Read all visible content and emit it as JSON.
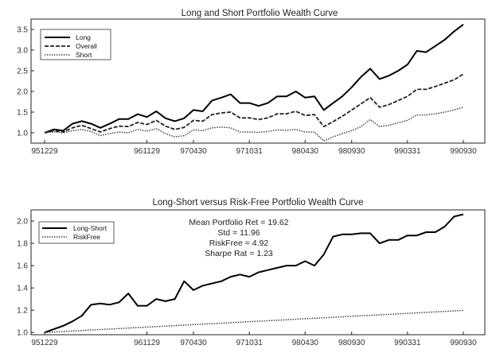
{
  "chart_data": [
    {
      "type": "line",
      "title": "Long and Short Portfolio Wealth Curve",
      "xlabel": "",
      "ylabel": "",
      "x_tick_labels": [
        "951229",
        "961129",
        "970430",
        "971031",
        "980430",
        "980930",
        "990331",
        "990930"
      ],
      "x_tick_index": [
        0,
        11,
        16,
        22,
        28,
        33,
        39,
        45
      ],
      "ylim": [
        0.75,
        3.75
      ],
      "yticks": [
        1.0,
        1.5,
        2.0,
        2.5,
        3.0,
        3.5
      ],
      "ytick_labels": [
        "1.0",
        "1.5",
        "2.0",
        "2.5",
        "3.0",
        "3.5"
      ],
      "legend_position": "top-left",
      "series": [
        {
          "name": "Long",
          "style": "solid",
          "values": [
            1.0,
            1.08,
            1.05,
            1.22,
            1.28,
            1.22,
            1.12,
            1.22,
            1.33,
            1.33,
            1.45,
            1.38,
            1.52,
            1.35,
            1.28,
            1.35,
            1.55,
            1.52,
            1.78,
            1.85,
            1.93,
            1.72,
            1.72,
            1.65,
            1.72,
            1.88,
            1.88,
            2.0,
            1.85,
            1.88,
            1.55,
            1.72,
            1.88,
            2.1,
            2.35,
            2.55,
            2.3,
            2.38,
            2.5,
            2.65,
            2.98,
            2.95,
            3.1,
            3.25,
            3.45,
            3.62
          ]
        },
        {
          "name": "Overall",
          "style": "dashed",
          "values": [
            1.0,
            1.05,
            1.02,
            1.12,
            1.18,
            1.1,
            1.02,
            1.1,
            1.16,
            1.15,
            1.25,
            1.2,
            1.3,
            1.16,
            1.08,
            1.13,
            1.3,
            1.28,
            1.44,
            1.48,
            1.5,
            1.36,
            1.36,
            1.32,
            1.36,
            1.46,
            1.46,
            1.52,
            1.42,
            1.44,
            1.15,
            1.27,
            1.4,
            1.55,
            1.7,
            1.85,
            1.62,
            1.68,
            1.78,
            1.88,
            2.05,
            2.05,
            2.12,
            2.2,
            2.28,
            2.42
          ]
        },
        {
          "name": "Short",
          "style": "dotted",
          "values": [
            1.0,
            1.02,
            1.0,
            1.05,
            1.08,
            1.03,
            0.93,
            0.98,
            1.02,
            1.0,
            1.08,
            1.04,
            1.1,
            0.98,
            0.9,
            0.93,
            1.07,
            1.05,
            1.12,
            1.14,
            1.12,
            1.02,
            1.02,
            1.01,
            1.03,
            1.07,
            1.06,
            1.08,
            1.02,
            1.02,
            0.8,
            0.9,
            0.98,
            1.05,
            1.15,
            1.32,
            1.15,
            1.18,
            1.24,
            1.3,
            1.43,
            1.43,
            1.46,
            1.5,
            1.55,
            1.62
          ]
        }
      ]
    },
    {
      "type": "line",
      "title": "Long-Short versus Risk-Free Portfolio Wealth Curve",
      "xlabel": "",
      "ylabel": "",
      "x_tick_labels": [
        "951229",
        "961129",
        "970430",
        "971031",
        "980430",
        "980930",
        "990331",
        "990930"
      ],
      "x_tick_index": [
        0,
        11,
        16,
        22,
        28,
        33,
        39,
        45
      ],
      "ylim": [
        0.98,
        2.1
      ],
      "yticks": [
        1.0,
        1.2,
        1.4,
        1.6,
        1.8,
        2.0
      ],
      "ytick_labels": [
        "1.0",
        "1.2",
        "1.4",
        "1.6",
        "1.8",
        "2.0"
      ],
      "legend_position": "top-left",
      "annotations": [
        "Mean Portfolio Ret = 19.62",
        "Std = 11.96",
        "RiskFree = 4.92",
        "Sharpe Rat = 1.23"
      ],
      "series": [
        {
          "name": "Long-Short",
          "style": "solid",
          "values": [
            1.0,
            1.03,
            1.06,
            1.1,
            1.15,
            1.25,
            1.26,
            1.25,
            1.27,
            1.35,
            1.24,
            1.24,
            1.3,
            1.28,
            1.3,
            1.46,
            1.38,
            1.42,
            1.44,
            1.46,
            1.5,
            1.52,
            1.5,
            1.54,
            1.56,
            1.58,
            1.6,
            1.6,
            1.64,
            1.6,
            1.7,
            1.86,
            1.88,
            1.88,
            1.89,
            1.89,
            1.8,
            1.83,
            1.83,
            1.87,
            1.87,
            1.9,
            1.9,
            1.95,
            2.04,
            2.06
          ]
        },
        {
          "name": "RiskFree",
          "style": "dotted",
          "values": [
            1.0,
            1.0044,
            1.0088,
            1.0132,
            1.0176,
            1.022,
            1.0264,
            1.0308,
            1.0352,
            1.0396,
            1.044,
            1.0484,
            1.0528,
            1.0572,
            1.0616,
            1.066,
            1.0704,
            1.0748,
            1.0792,
            1.0836,
            1.088,
            1.0924,
            1.0968,
            1.1012,
            1.1056,
            1.11,
            1.1144,
            1.1188,
            1.1232,
            1.1276,
            1.132,
            1.1364,
            1.1408,
            1.1452,
            1.1496,
            1.154,
            1.1584,
            1.1628,
            1.1672,
            1.1716,
            1.176,
            1.1804,
            1.1848,
            1.1892,
            1.1936,
            1.198
          ]
        }
      ]
    }
  ]
}
